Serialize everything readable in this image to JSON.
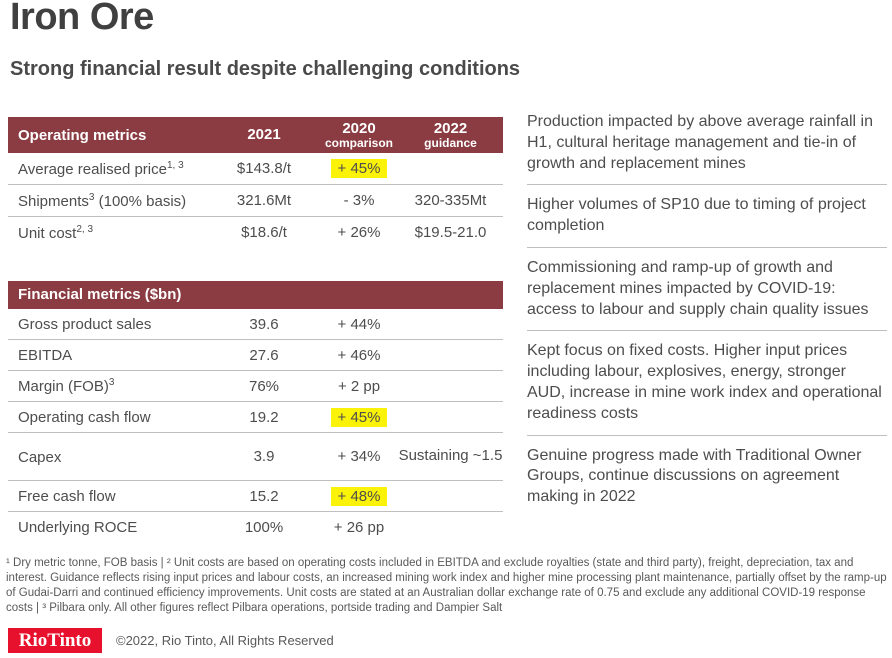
{
  "page": {
    "title": "Iron Ore",
    "subtitle": "Strong financial result despite challenging conditions"
  },
  "colors": {
    "table_header_maroon": "#8B3B42",
    "highlight_yellow": "#FAF207",
    "logo_red": "#E8112D",
    "title_gray": "#404040",
    "body_gray": "#4d4d4d",
    "divider_gray": "#BFBFBF"
  },
  "operating": {
    "header": {
      "title": "Operating metrics",
      "col_2021": "2021",
      "col_2020": "2020",
      "col_2020_sub": "comparison",
      "col_2022": "2022",
      "col_2022_sub": "guidance"
    },
    "rows": [
      {
        "label_pre": "Average realised price",
        "label_sup": "1, 3",
        "label_post": "",
        "value": "$143.8/t",
        "comparison": "+ 45%",
        "guidance": "",
        "highlighted": true
      },
      {
        "label_pre": "Shipments",
        "label_sup": "3",
        "label_post": " (100% basis)",
        "value": "321.6Mt",
        "comparison": "- 3%",
        "guidance": "320-335Mt",
        "highlighted": false
      },
      {
        "label_pre": "Unit cost",
        "label_sup": "2, 3",
        "label_post": "",
        "value": "$18.6/t",
        "comparison": "+ 26%",
        "guidance": "$19.5-21.0",
        "highlighted": false
      }
    ]
  },
  "financial": {
    "header": {
      "title": "Financial metrics ($bn)"
    },
    "rows": [
      {
        "label_pre": "Gross product sales",
        "label_sup": "",
        "label_post": "",
        "value": "39.6",
        "comparison": "+ 44%",
        "guidance": "",
        "highlighted": false
      },
      {
        "label_pre": "EBITDA",
        "label_sup": "",
        "label_post": "",
        "value": "27.6",
        "comparison": "+ 46%",
        "guidance": "",
        "highlighted": false
      },
      {
        "label_pre": "Margin (FOB)",
        "label_sup": "3",
        "label_post": "",
        "value": "76%",
        "comparison": "+ 2 pp",
        "guidance": "",
        "highlighted": false
      },
      {
        "label_pre": "Operating cash flow",
        "label_sup": "",
        "label_post": "",
        "value": "19.2",
        "comparison": "+ 45%",
        "guidance": "",
        "highlighted": true
      },
      {
        "label_pre": "Capex",
        "label_sup": "",
        "label_post": "",
        "value": "3.9",
        "comparison": "+ 34%",
        "guidance": "Sustaining ~1.5",
        "highlighted": false
      },
      {
        "label_pre": "Free cash flow",
        "label_sup": "",
        "label_post": "",
        "value": "15.2",
        "comparison": "+ 48%",
        "guidance": "",
        "highlighted": true
      },
      {
        "label_pre": "Underlying ROCE",
        "label_sup": "",
        "label_post": "",
        "value": "100%",
        "comparison": "+ 26 pp",
        "guidance": "",
        "highlighted": false
      }
    ]
  },
  "highlights_panel": {
    "items": [
      "Production impacted by above average rainfall in H1, cultural heritage management and tie-in of growth and replacement mines",
      "Higher volumes of SP10 due to timing of project completion",
      "Commissioning and ramp-up of growth and replacement mines impacted by COVID-19: access to labour and supply chain quality issues",
      "Kept focus on fixed costs. Higher input prices including labour, explosives, energy, stronger AUD, increase in mine work index and operational readiness costs",
      "Genuine progress made with Traditional Owner Groups, continue discussions on agreement making in 2022"
    ]
  },
  "footnote": "¹ Dry metric tonne, FOB basis | ² Unit costs are based on operating costs included in EBITDA and exclude royalties (state and third party), freight, depreciation, tax and interest. Guidance reflects rising input prices and labour costs, an increased mining work index and higher mine processing plant maintenance, partially offset by the ramp-up of Gudai-Darri and continued efficiency improvements. Unit costs are stated at an Australian dollar exchange rate of 0.75 and exclude any additional COVID-19 response costs | ³ Pilbara only. All other figures reflect Pilbara operations, portside trading and Dampier Salt",
  "footer": {
    "logo_text": "RioTinto",
    "copyright": "©2022, Rio Tinto, All Rights Reserved"
  }
}
